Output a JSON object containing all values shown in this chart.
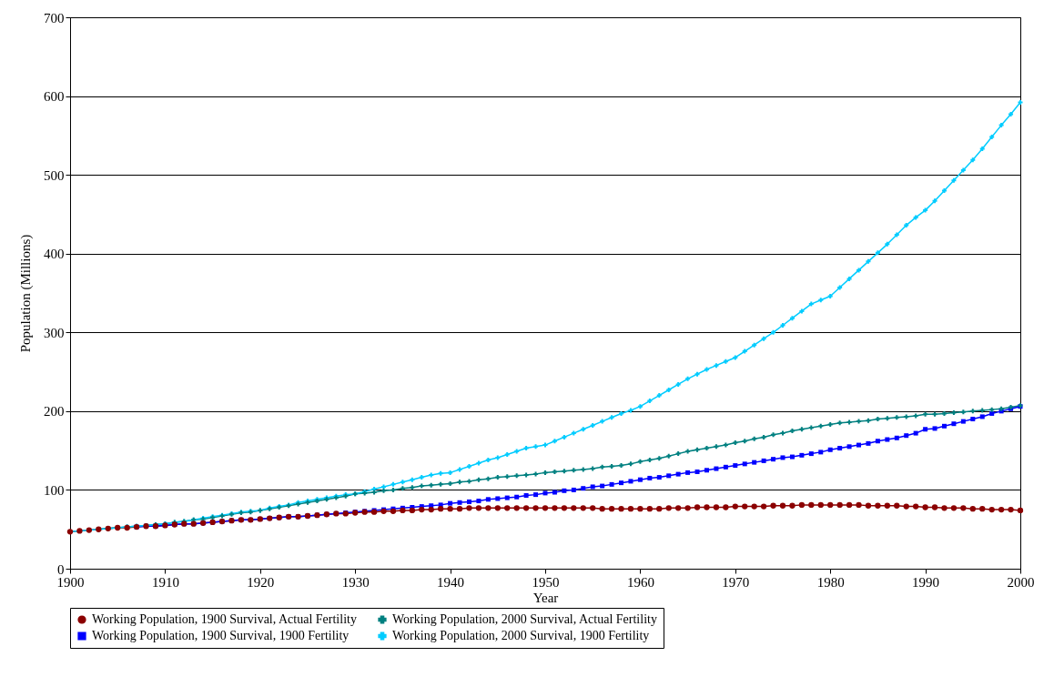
{
  "chart_data": {
    "type": "line",
    "xlabel": "Year",
    "ylabel": "Population (Millions)",
    "x": [
      1900,
      1901,
      1902,
      1903,
      1904,
      1905,
      1906,
      1907,
      1908,
      1909,
      1910,
      1911,
      1912,
      1913,
      1914,
      1915,
      1916,
      1917,
      1918,
      1919,
      1920,
      1921,
      1922,
      1923,
      1924,
      1925,
      1926,
      1927,
      1928,
      1929,
      1930,
      1931,
      1932,
      1933,
      1934,
      1935,
      1936,
      1937,
      1938,
      1939,
      1940,
      1941,
      1942,
      1943,
      1944,
      1945,
      1946,
      1947,
      1948,
      1949,
      1950,
      1951,
      1952,
      1953,
      1954,
      1955,
      1956,
      1957,
      1958,
      1959,
      1960,
      1961,
      1962,
      1963,
      1964,
      1965,
      1966,
      1967,
      1968,
      1969,
      1970,
      1971,
      1972,
      1973,
      1974,
      1975,
      1976,
      1977,
      1978,
      1979,
      1980,
      1981,
      1982,
      1983,
      1984,
      1985,
      1986,
      1987,
      1988,
      1989,
      1990,
      1991,
      1992,
      1993,
      1994,
      1995,
      1996,
      1997,
      1998,
      1999,
      2000
    ],
    "xlim": [
      1900,
      2000
    ],
    "xticks": [
      1900,
      1910,
      1920,
      1930,
      1940,
      1950,
      1960,
      1970,
      1980,
      1990,
      2000
    ],
    "ylim": [
      0,
      700
    ],
    "yticks": [
      0,
      100,
      200,
      300,
      400,
      500,
      600,
      700
    ],
    "grid": "y",
    "legend": "bottom",
    "series": [
      {
        "name": "Working Population, 1900 Survival, Actual Fertility",
        "color": "#8b0000",
        "marker": "circle",
        "values": [
          47,
          48,
          49,
          50,
          51,
          52,
          52,
          53,
          54,
          54,
          55,
          56,
          57,
          57,
          58,
          59,
          60,
          61,
          62,
          62,
          63,
          64,
          65,
          66,
          66,
          67,
          68,
          69,
          70,
          70,
          71,
          72,
          72,
          73,
          73,
          74,
          74,
          75,
          75,
          76,
          76,
          76,
          77,
          77,
          77,
          77,
          77,
          77,
          77,
          77,
          77,
          77,
          77,
          77,
          77,
          77,
          76,
          76,
          76,
          76,
          76,
          76,
          76,
          77,
          77,
          77,
          78,
          78,
          78,
          78,
          79,
          79,
          79,
          79,
          80,
          80,
          80,
          81,
          81,
          81,
          81,
          81,
          81,
          81,
          80,
          80,
          80,
          80,
          79,
          79,
          78,
          78,
          77,
          77,
          77,
          76,
          76,
          75,
          75,
          75,
          74
        ]
      },
      {
        "name": "Working Population, 2000 Survival, Actual Fertility",
        "color": "#008080",
        "marker": "cross",
        "values": [
          null,
          null,
          null,
          50,
          51,
          52,
          53,
          54,
          55,
          56,
          57,
          59,
          60,
          62,
          63,
          65,
          67,
          69,
          71,
          72,
          74,
          76,
          78,
          80,
          82,
          84,
          86,
          88,
          90,
          92,
          95,
          96,
          97,
          99,
          100,
          102,
          103,
          105,
          106,
          107,
          108,
          110,
          111,
          113,
          114,
          116,
          117,
          118,
          119,
          120,
          122,
          123,
          124,
          125,
          126,
          127,
          129,
          130,
          131,
          133,
          136,
          138,
          140,
          143,
          146,
          149,
          151,
          153,
          155,
          157,
          160,
          162,
          165,
          167,
          170,
          172,
          175,
          177,
          179,
          181,
          183,
          185,
          186,
          187,
          188,
          190,
          191,
          192,
          193,
          194,
          196,
          196,
          197,
          198,
          199,
          200,
          201,
          202,
          203,
          205,
          207
        ]
      },
      {
        "name": "Working Population, 1900 Survival, 1900 Fertility",
        "color": "#0000ff",
        "marker": "square",
        "values": [
          null,
          null,
          null,
          null,
          null,
          null,
          null,
          53,
          54,
          54,
          55,
          56,
          57,
          57,
          58,
          59,
          60,
          61,
          62,
          62,
          63,
          64,
          65,
          66,
          66,
          67,
          68,
          69,
          70,
          71,
          72,
          73,
          74,
          75,
          76,
          77,
          78,
          79,
          80,
          81,
          83,
          84,
          85,
          86,
          88,
          89,
          90,
          91,
          93,
          94,
          96,
          97,
          99,
          100,
          102,
          104,
          105,
          107,
          109,
          111,
          113,
          115,
          116,
          118,
          120,
          122,
          123,
          125,
          127,
          129,
          131,
          133,
          135,
          137,
          139,
          141,
          142,
          144,
          146,
          148,
          151,
          153,
          155,
          157,
          159,
          162,
          164,
          166,
          169,
          172,
          177,
          178,
          181,
          184,
          187,
          190,
          193,
          197,
          200,
          203,
          206
        ]
      },
      {
        "name": "Working Population, 2000 Survival, 1900 Fertility",
        "color": "#00ccff",
        "marker": "cross",
        "values": [
          47,
          48,
          49,
          50,
          51,
          52,
          53,
          54,
          55,
          56,
          57,
          59,
          60,
          62,
          64,
          66,
          68,
          70,
          72,
          73,
          74,
          77,
          79,
          81,
          84,
          86,
          88,
          90,
          92,
          94,
          95,
          98,
          101,
          104,
          107,
          110,
          113,
          116,
          119,
          121,
          122,
          126,
          130,
          134,
          138,
          141,
          145,
          149,
          153,
          155,
          157,
          162,
          167,
          172,
          177,
          182,
          187,
          192,
          197,
          201,
          206,
          213,
          220,
          227,
          234,
          241,
          247,
          253,
          258,
          263,
          268,
          276,
          284,
          292,
          300,
          309,
          318,
          327,
          336,
          341,
          346,
          357,
          368,
          379,
          390,
          401,
          412,
          424,
          436,
          446,
          455,
          467,
          480,
          493,
          506,
          519,
          533,
          548,
          563,
          577,
          592
        ]
      }
    ]
  }
}
